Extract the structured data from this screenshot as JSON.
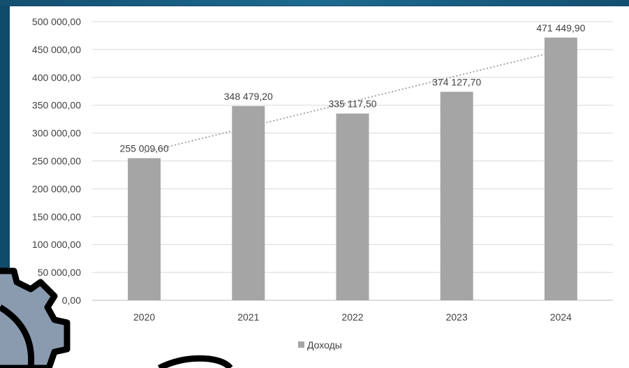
{
  "chart_data": {
    "type": "bar",
    "categories": [
      "2020",
      "2021",
      "2022",
      "2023",
      "2024"
    ],
    "series": [
      {
        "name": "Доходы",
        "values": [
          255009.6,
          348479.2,
          335117.5,
          374127.7,
          471449.9
        ],
        "labels": [
          "255 009,60",
          "348 479,20",
          "335 117,50",
          "374 127,70",
          "471 449,90"
        ],
        "color": "#a5a5a5"
      }
    ],
    "trendline": {
      "type": "linear",
      "style": "dotted",
      "color": "#a5a5a5"
    },
    "yticks": [
      "0,00",
      "50 000,00",
      "100 000,00",
      "150 000,00",
      "200 000,00",
      "250 000,00",
      "300 000,00",
      "350 000,00",
      "400 000,00",
      "450 000,00",
      "500 000,00"
    ],
    "ylim": [
      0,
      500000
    ],
    "grid": true,
    "legend": "bottom",
    "title": "",
    "xlabel": "",
    "ylabel": ""
  },
  "decor": {
    "gear_color": "#8a9bb0",
    "outline_color": "#000000"
  }
}
